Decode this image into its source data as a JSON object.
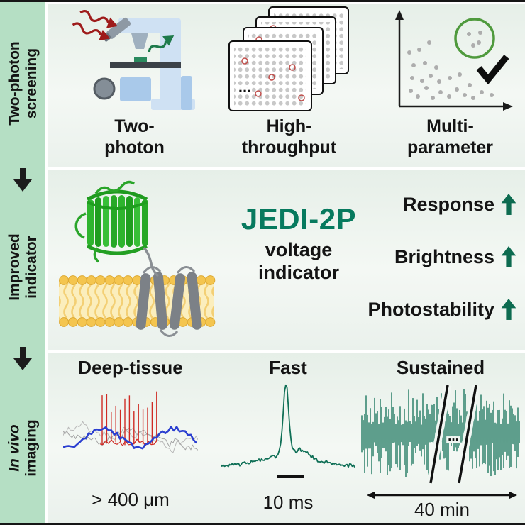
{
  "figure": {
    "sidebar": {
      "screening_line1": "Two-photon",
      "screening_line2": "screening",
      "indicator_line1": "Improved",
      "indicator_line2": "indicator",
      "imaging_line1": "In vivo",
      "imaging_line2": "imaging"
    },
    "screening": {
      "microscope_line1": "Two-",
      "microscope_line2": "photon",
      "plates_line1": "High-",
      "plates_line2": "throughput",
      "plates_ellipsis": "...",
      "scatter_line1": "Multi-",
      "scatter_line2": "parameter"
    },
    "indicator": {
      "title": "JEDI-2P",
      "subtitle_line1": "voltage",
      "subtitle_line2": "indicator",
      "metrics": [
        "Response",
        "Brightness",
        "Photostability"
      ]
    },
    "imaging": {
      "deep_title": "Deep-tissue",
      "deep_caption": "> 400 μm",
      "fast_title": "Fast",
      "fast_caption": "10 ms",
      "sustained_title": "Sustained",
      "sustained_caption": "40 min",
      "break_ellipsis": "..."
    },
    "colors": {
      "accent_teal": "#077a5e",
      "trace_teal": "#0f6f56",
      "sidebar_green": "#b5dfc4",
      "metric_arrow_green": "#0d6b50"
    }
  }
}
